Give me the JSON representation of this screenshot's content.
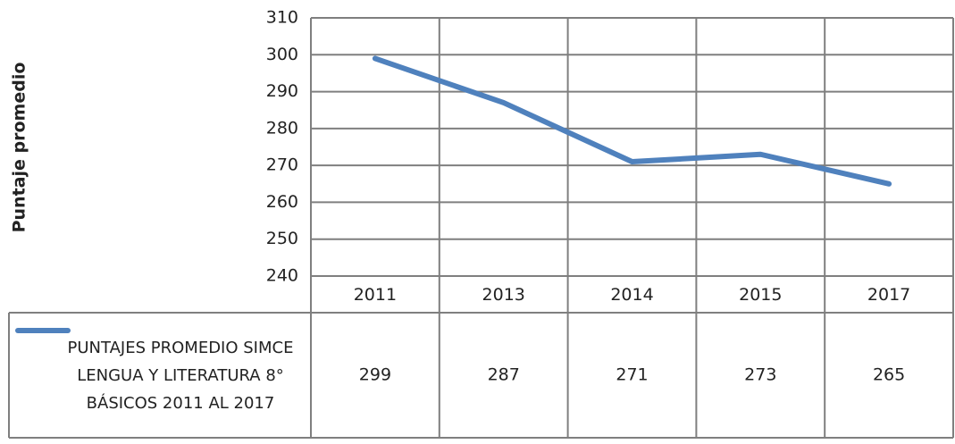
{
  "chart_data": {
    "type": "line",
    "y_label": "Puntaje promedio",
    "categories": [
      "2011",
      "2013",
      "2014",
      "2015",
      "2017"
    ],
    "series": [
      {
        "name": "PUNTAJES PROMEDIO SIMCE LENGUA Y LITERATURA 8° BÁSICOS 2011 AL 2017",
        "color": "#4f81bd",
        "values": [
          299,
          287,
          271,
          273,
          265
        ]
      }
    ],
    "ylim": [
      240,
      310
    ],
    "yticks": [
      240,
      250,
      260,
      270,
      280,
      290,
      300,
      310
    ],
    "grid": true
  }
}
